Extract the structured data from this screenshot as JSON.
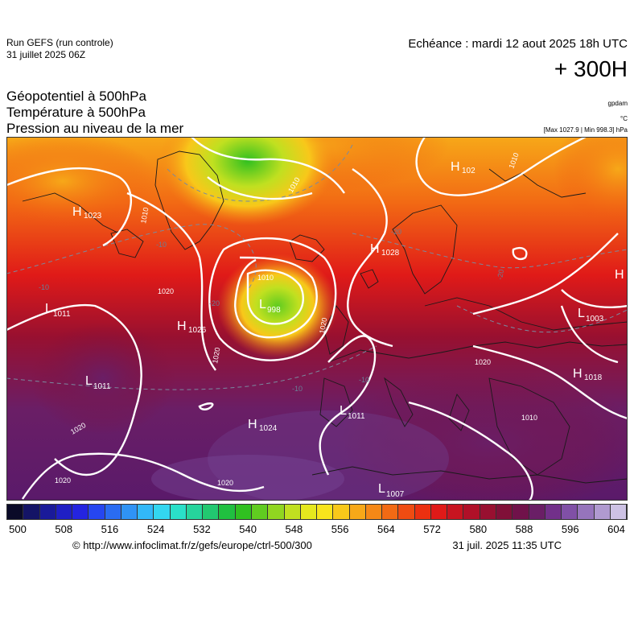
{
  "header": {
    "run_name": "Run GEFS (run controle)",
    "run_date": "31 juillet 2025 06Z",
    "valid_time": "Echéance : mardi 12 aout 2025 18h UTC",
    "lead_time": "+ 300H",
    "params": [
      "Géopotentiel à 500hPa",
      "Température à 500hPa",
      "Pression au niveau de la mer"
    ],
    "unit_geopot": "gpdam",
    "unit_temp": "°C",
    "minmax": "[Max 1027.9 | Min 998.3] hPa"
  },
  "map": {
    "pressure_centers": [
      {
        "type": "H",
        "value": "1023"
      },
      {
        "type": "H",
        "value": "1026"
      },
      {
        "type": "L",
        "value": "1011"
      },
      {
        "type": "L",
        "value": "1011"
      },
      {
        "type": "L",
        "value": "998"
      },
      {
        "type": "H",
        "value": "1028"
      },
      {
        "type": "H",
        "value": "1024"
      },
      {
        "type": "L",
        "value": "1011"
      },
      {
        "type": "L",
        "value": "1007"
      },
      {
        "type": "H",
        "value": "1018"
      },
      {
        "type": "L",
        "value": "1003"
      },
      {
        "type": "H",
        "value": "102"
      },
      {
        "type": "H",
        "value": ""
      }
    ],
    "isobar_labels": [
      "1020",
      "1020",
      "1020",
      "1020",
      "1020",
      "1010",
      "1010",
      "1010",
      "1010",
      "1020",
      "1020",
      "1010"
    ],
    "temp_labels": [
      "-10",
      "-10",
      "-10",
      "-20",
      "-20",
      "-20",
      "-10"
    ]
  },
  "colorscale": {
    "colors": [
      "#0a0a28",
      "#141466",
      "#1a1a99",
      "#1f1fc4",
      "#2424e0",
      "#2646f0",
      "#2a6cf2",
      "#2f93f5",
      "#32b8f8",
      "#33d6f0",
      "#2ae0c8",
      "#26d49c",
      "#22c870",
      "#20c040",
      "#30c020",
      "#60cc20",
      "#90d620",
      "#c0e020",
      "#e6e81e",
      "#f8e41c",
      "#f8c81a",
      "#f7a818",
      "#f58816",
      "#f26a14",
      "#ef4c12",
      "#eb3010",
      "#e01a18",
      "#c81420",
      "#b01028",
      "#981030",
      "#801038",
      "#70124a",
      "#6a1e66",
      "#72308a",
      "#8050a6",
      "#9674bc",
      "#b09ad0",
      "#cdc2e4"
    ],
    "tick_labels": [
      "500",
      "508",
      "516",
      "524",
      "532",
      "540",
      "548",
      "556",
      "564",
      "572",
      "580",
      "588",
      "596",
      "604"
    ]
  },
  "footer": {
    "credit": "© http://www.infoclimat.fr/z/gefs/europe/ctrl-500/300",
    "timestamp": "31 juil. 2025 11:35 UTC"
  }
}
